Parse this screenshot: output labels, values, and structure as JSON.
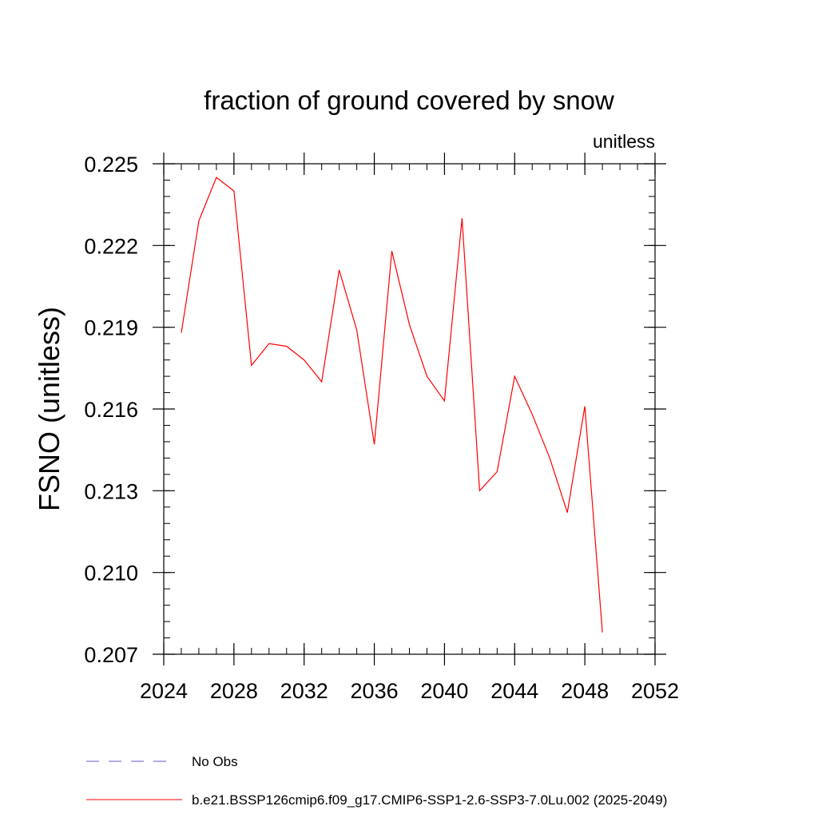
{
  "chart_data": {
    "type": "line",
    "title": "fraction of ground covered by snow",
    "units_label": "unitless",
    "ylabel": "FSNO  (unitless)",
    "xlabel": "",
    "xlim": [
      2024,
      2052
    ],
    "ylim": [
      0.207,
      0.225
    ],
    "x_ticks": [
      "2024",
      "2028",
      "2032",
      "2036",
      "2040",
      "2044",
      "2048",
      "2052"
    ],
    "x_tick_values": [
      2024,
      2028,
      2032,
      2036,
      2040,
      2044,
      2048,
      2052
    ],
    "y_ticks": [
      "0.207",
      "0.210",
      "0.213",
      "0.216",
      "0.219",
      "0.222",
      "0.225"
    ],
    "y_tick_values": [
      0.207,
      0.21,
      0.213,
      0.216,
      0.219,
      0.222,
      0.225
    ],
    "grid": false,
    "legend_position": "bottom-left",
    "series": [
      {
        "name": "No Obs",
        "color": "#6a5acd",
        "style": "dashed",
        "x": [],
        "y": []
      },
      {
        "name": "b.e21.BSSP126cmip6.f09_g17.CMIP6-SSP1-2.6-SSP3-7.0Lu.002 (2025-2049)",
        "color": "#ff0000",
        "style": "solid",
        "x": [
          2025,
          2026,
          2027,
          2028,
          2029,
          2030,
          2031,
          2032,
          2033,
          2034,
          2035,
          2036,
          2037,
          2038,
          2039,
          2040,
          2041,
          2042,
          2043,
          2044,
          2045,
          2046,
          2047,
          2048,
          2049
        ],
        "y": [
          0.2188,
          0.2229,
          0.2245,
          0.224,
          0.2176,
          0.2184,
          0.2183,
          0.2178,
          0.217,
          0.2211,
          0.2189,
          0.2147,
          0.2218,
          0.2191,
          0.2172,
          0.2163,
          0.223,
          0.213,
          0.2137,
          0.2172,
          0.2158,
          0.2142,
          0.2122,
          0.2161,
          0.2078
        ]
      }
    ]
  }
}
